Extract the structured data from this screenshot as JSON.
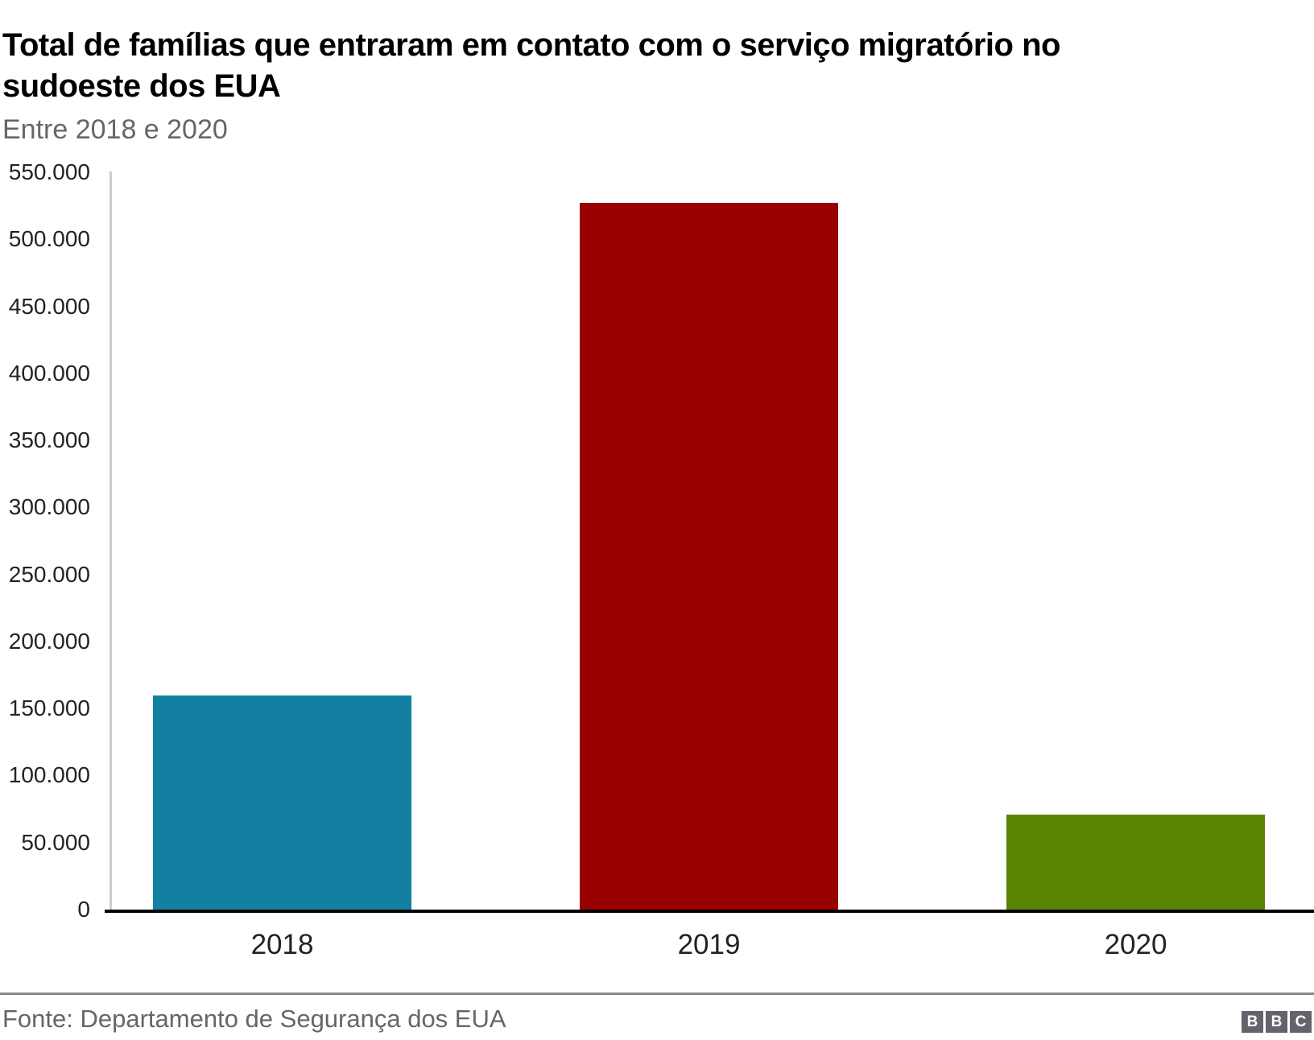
{
  "header": {
    "title_line1": "Total de famílias que entraram em contato com o serviço migratório no",
    "title_line2": "sudoeste dos EUA",
    "subtitle": "Entre 2018 e 2020"
  },
  "chart_data": {
    "type": "bar",
    "title": "Total de famílias que entraram em contato com o serviço migratório no sudoeste dos EUA",
    "subtitle": "Entre 2018 e 2020",
    "categories": [
      "2018",
      "2019",
      "2020"
    ],
    "values": [
      160000,
      527000,
      71000
    ],
    "bar_colors": [
      "#1380A1",
      "#990000",
      "#588400"
    ],
    "xlabel": "",
    "ylabel": "",
    "ylim": [
      0,
      550000
    ],
    "ytick_values": [
      0,
      50000,
      100000,
      150000,
      200000,
      250000,
      300000,
      350000,
      400000,
      450000,
      500000,
      550000
    ],
    "ytick_labels": [
      "0",
      "50.000",
      "100.000",
      "150.000",
      "200.000",
      "250.000",
      "300.000",
      "350.000",
      "400.000",
      "450.000",
      "500.000",
      "550.000"
    ],
    "grid": false,
    "legend_position": "none"
  },
  "footer": {
    "source": "Fonte: Departamento de Segurança dos EUA",
    "logo_letters": [
      "B",
      "B",
      "C"
    ]
  },
  "colors": {
    "axis_line": "#000000",
    "y_axis_line": "#cccccc",
    "title_text": "#000000",
    "subtitle_text": "#666666",
    "source_text": "#666666",
    "bbc_logo_box": "#63636b"
  }
}
